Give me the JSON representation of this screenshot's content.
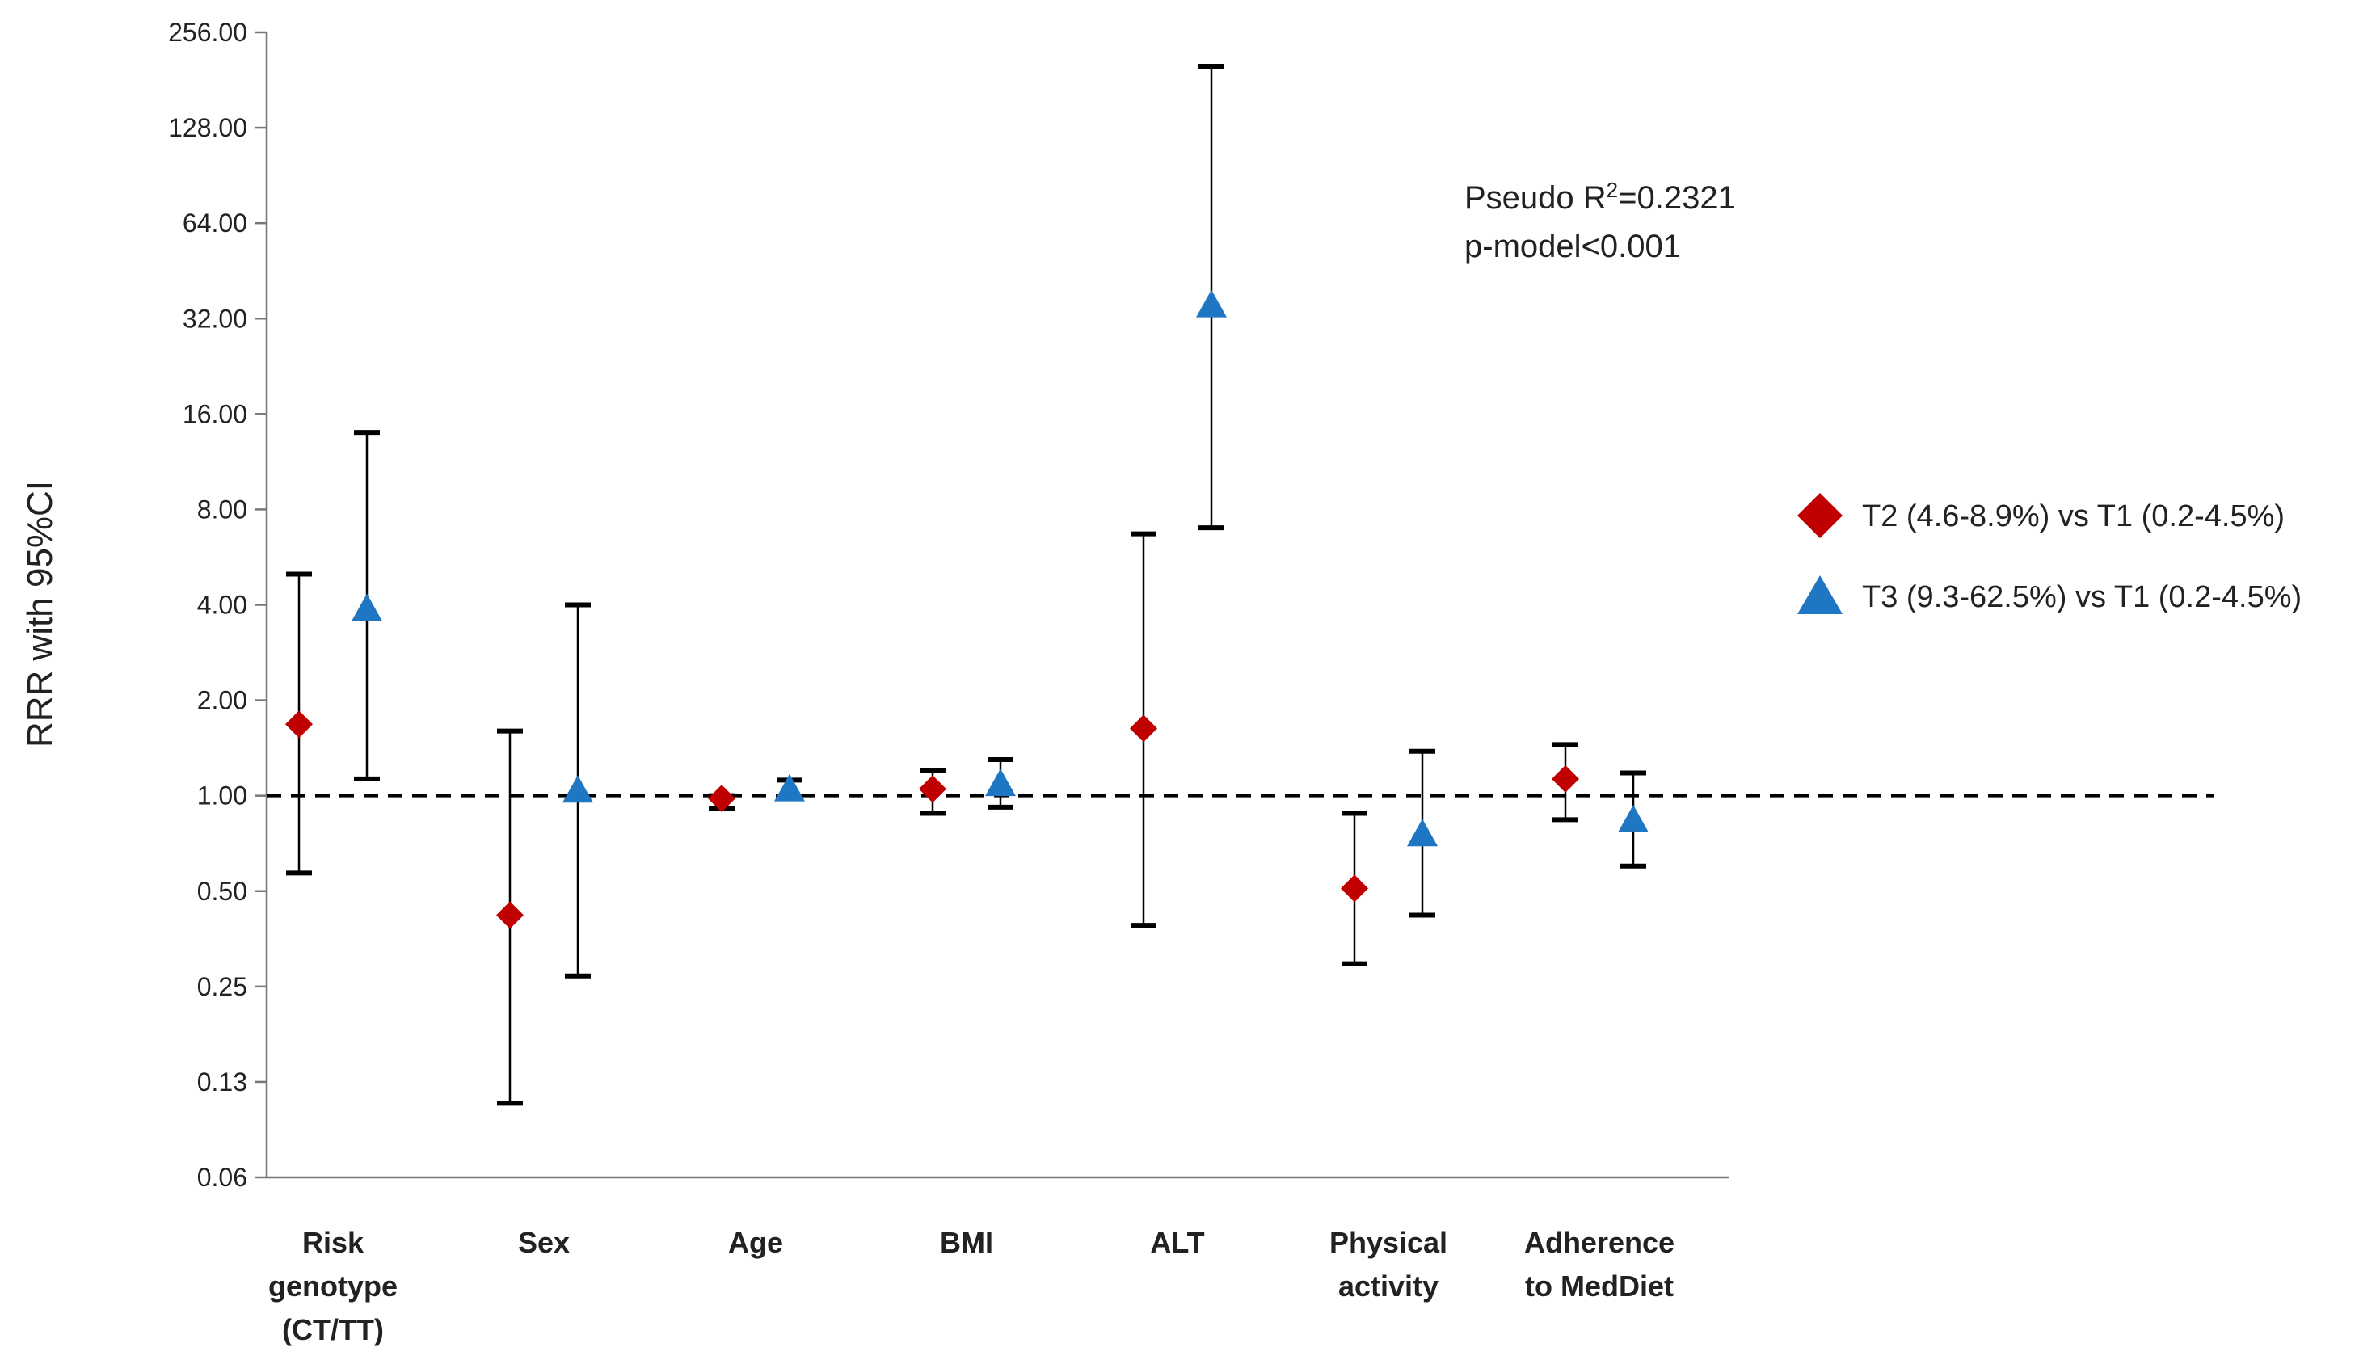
{
  "chart_data": {
    "type": "scatter",
    "title": "",
    "ylabel": "RRR with 95%CI",
    "xlabel": "",
    "yscale": "log2",
    "ylim": [
      0.0625,
      256
    ],
    "ytick_values": [
      0.0625,
      0.125,
      0.25,
      0.5,
      1,
      2,
      4,
      8,
      16,
      32,
      64,
      128,
      256
    ],
    "ytick_labels": [
      "0.06",
      "0.13",
      "0.25",
      "0.50",
      "1.00",
      "2.00",
      "4.00",
      "8.00",
      "16.00",
      "32.00",
      "64.00",
      "128.00",
      "256.00"
    ],
    "reference_line": 1,
    "categories": [
      [
        "Risk",
        "genotype",
        "(CT/TT)"
      ],
      [
        "Sex"
      ],
      [
        "Age"
      ],
      [
        "BMI"
      ],
      [
        "ALT"
      ],
      [
        "Physical",
        "activity"
      ],
      [
        "Adherence",
        "to MedDiet"
      ]
    ],
    "series": [
      {
        "name": "T2 (4.6-8.9%) vs T1 (0.2-4.5%)",
        "marker": "diamond",
        "color": "#c00000",
        "values": [
          1.68,
          0.42,
          0.98,
          1.05,
          1.63,
          0.51,
          1.13
        ],
        "ci_low": [
          0.57,
          0.107,
          0.91,
          0.88,
          0.39,
          0.295,
          0.84
        ],
        "ci_high": [
          5.0,
          1.6,
          1.0,
          1.2,
          6.7,
          0.88,
          1.45
        ]
      },
      {
        "name": "T3 (9.3-62.5%) vs T1 (0.2-4.5%)",
        "marker": "triangle",
        "color": "#1f77c4",
        "values": [
          3.85,
          1.03,
          1.04,
          1.08,
          35.0,
          0.75,
          0.83
        ],
        "ci_low": [
          1.13,
          0.27,
          0.99,
          0.92,
          7.0,
          0.42,
          0.6
        ],
        "ci_high": [
          14.0,
          4.0,
          1.12,
          1.3,
          200.0,
          1.38,
          1.18
        ]
      }
    ],
    "annotations": [
      {
        "text_prefix": "Pseudo R",
        "text_sup": "2",
        "text_suffix": "=0.2321"
      },
      {
        "text_prefix": "p-model<0.001",
        "text_sup": "",
        "text_suffix": ""
      }
    ],
    "legend_position": "right"
  }
}
